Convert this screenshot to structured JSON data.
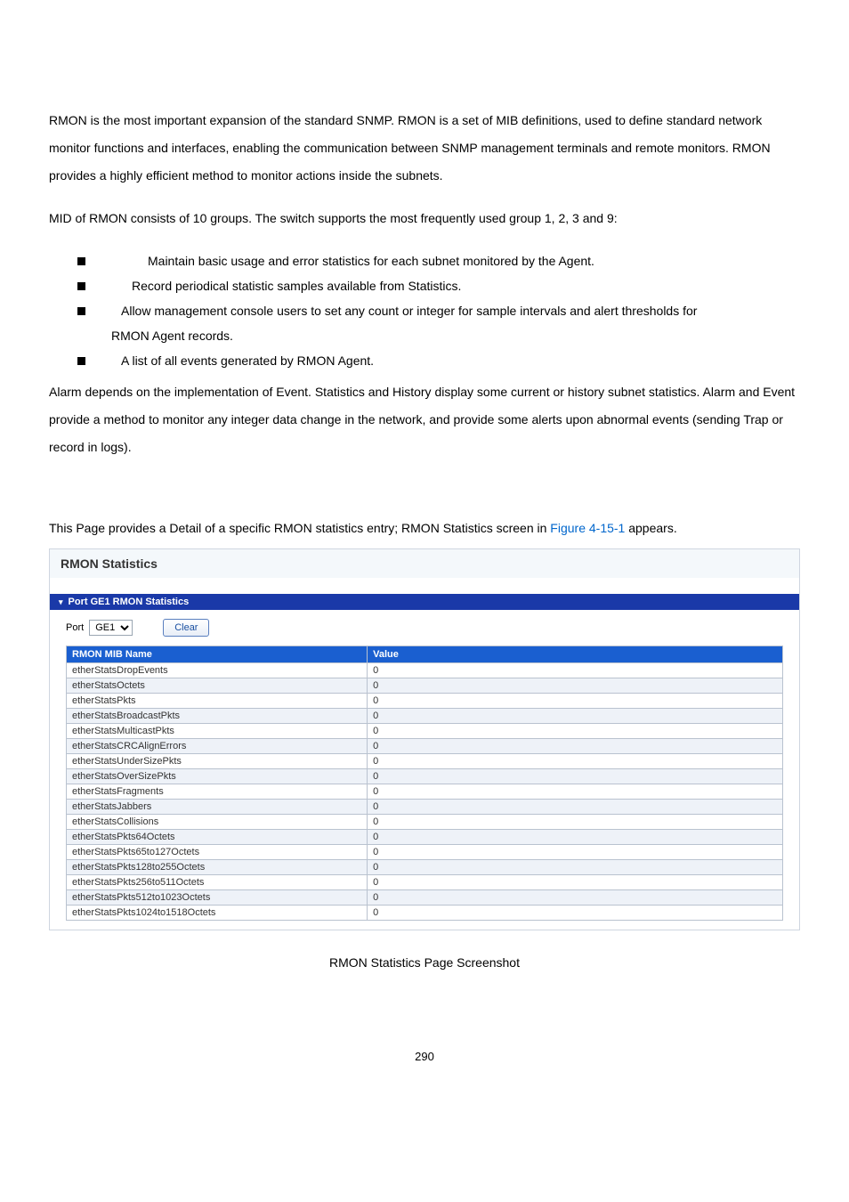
{
  "text": {
    "p1": "RMON is the most important expansion of the standard SNMP. RMON is a set of MIB definitions, used to define standard network monitor functions and interfaces, enabling the communication between SNMP management terminals and remote monitors. RMON provides a highly efficient method to monitor actions inside the subnets.",
    "p2": "MID of RMON consists of 10 groups. The switch supports the most frequently used group 1, 2, 3 and 9:",
    "b1": "Maintain basic usage and error statistics for each subnet monitored by the Agent.",
    "b2": "Record periodical statistic samples available from Statistics.",
    "b3": "Allow management console users to set any count or integer for sample intervals and alert thresholds for",
    "b3b": "RMON Agent records.",
    "b4": "A list of all events generated by RMON Agent.",
    "p3": "Alarm depends on the implementation of Event. Statistics and History display some current or history subnet statistics. Alarm and Event provide a method to monitor any integer data change in the network, and provide some alerts upon abnormal events (sending Trap or record in logs).",
    "intro_a": "This Page provides a Detail of a specific RMON statistics entry; RMON Statistics screen in ",
    "intro_link": "Figure 4-15-1",
    "intro_b": " appears.",
    "caption": "RMON Statistics Page Screenshot",
    "pagenum": "290"
  },
  "screenshot": {
    "title": "RMON Statistics",
    "section_header": "Port GE1 RMON Statistics",
    "port_label": "Port",
    "port_value": "GE1",
    "clear_label": "Clear",
    "header_name": "RMON MIB Name",
    "header_value": "Value",
    "rows": [
      {
        "name": "etherStatsDropEvents",
        "val": "0"
      },
      {
        "name": "etherStatsOctets",
        "val": "0"
      },
      {
        "name": "etherStatsPkts",
        "val": "0"
      },
      {
        "name": "etherStatsBroadcastPkts",
        "val": "0"
      },
      {
        "name": "etherStatsMulticastPkts",
        "val": "0"
      },
      {
        "name": "etherStatsCRCAlignErrors",
        "val": "0"
      },
      {
        "name": "etherStatsUnderSizePkts",
        "val": "0"
      },
      {
        "name": "etherStatsOverSizePkts",
        "val": "0"
      },
      {
        "name": "etherStatsFragments",
        "val": "0"
      },
      {
        "name": "etherStatsJabbers",
        "val": "0"
      },
      {
        "name": "etherStatsCollisions",
        "val": "0"
      },
      {
        "name": "etherStatsPkts64Octets",
        "val": "0"
      },
      {
        "name": "etherStatsPkts65to127Octets",
        "val": "0"
      },
      {
        "name": "etherStatsPkts128to255Octets",
        "val": "0"
      },
      {
        "name": "etherStatsPkts256to511Octets",
        "val": "0"
      },
      {
        "name": "etherStatsPkts512to1023Octets",
        "val": "0"
      },
      {
        "name": "etherStatsPkts1024to1518Octets",
        "val": "0"
      }
    ]
  }
}
